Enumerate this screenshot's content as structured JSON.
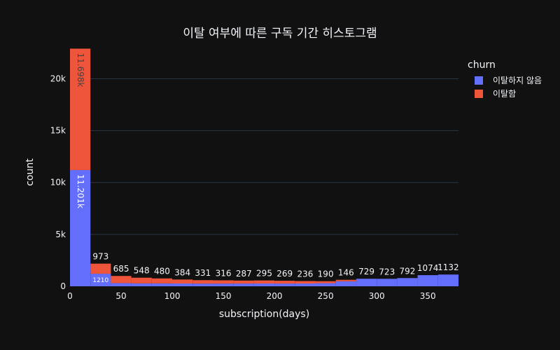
{
  "chart_data": {
    "type": "bar",
    "barmode": "stack",
    "title": "이탈 여부에 따른 구독 기간 히스토그램",
    "xlabel": "subscription(days)",
    "ylabel": "count",
    "xlim": [
      0,
      380
    ],
    "ylim": [
      0,
      23000
    ],
    "x_ticks": [
      0,
      50,
      100,
      150,
      200,
      250,
      300,
      350
    ],
    "y_ticks": [
      0,
      5000,
      10000,
      15000,
      20000
    ],
    "y_tick_labels": [
      "0",
      "5k",
      "10k",
      "15k",
      "20k"
    ],
    "grid": true,
    "legend_title": "churn",
    "legend_position": "top-right",
    "bin_width": 20,
    "bins": [
      0,
      20,
      40,
      60,
      80,
      100,
      120,
      140,
      160,
      180,
      200,
      220,
      240,
      260,
      280,
      300,
      320,
      340,
      360
    ],
    "series": [
      {
        "name": "이탈하지 않음",
        "color": "#636efa",
        "values": [
          11201,
          1210,
          310,
          280,
          280,
          270,
          260,
          260,
          265,
          270,
          265,
          270,
          300,
          480,
          729,
          723,
          792,
          1074,
          1132
        ],
        "labels": [
          "11.201k",
          "1210",
          "",
          "",
          "",
          "",
          "",
          "",
          "",
          "",
          "",
          "",
          "",
          "",
          "729",
          "723",
          "792",
          "1074",
          "1132"
        ]
      },
      {
        "name": "이탈함",
        "color": "#ef553b",
        "values": [
          11698,
          973,
          685,
          548,
          480,
          384,
          331,
          316,
          287,
          295,
          269,
          236,
          190,
          146,
          0,
          0,
          0,
          0,
          0
        ],
        "labels": [
          "11.698k",
          "973",
          "685",
          "548",
          "480",
          "384",
          "331",
          "316",
          "287",
          "295",
          "269",
          "236",
          "190",
          "146",
          "",
          "",
          "",
          "",
          ""
        ]
      }
    ]
  }
}
